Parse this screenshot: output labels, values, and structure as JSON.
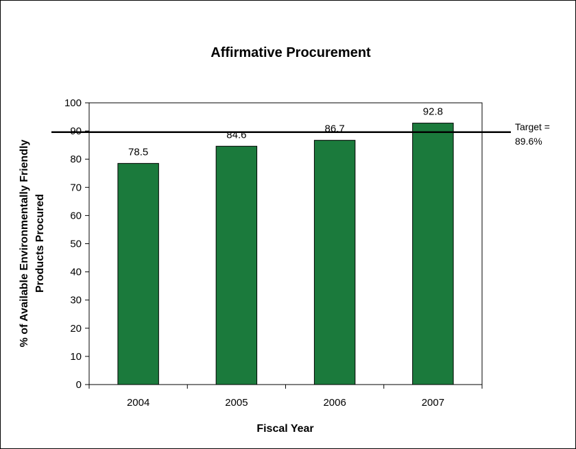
{
  "chart_data": {
    "type": "bar",
    "title": "Affirmative Procurement",
    "xlabel": "Fiscal Year",
    "ylabel": [
      "% of Available Environmentally Friendly",
      "Products Procured"
    ],
    "categories": [
      "2004",
      "2005",
      "2006",
      "2007"
    ],
    "values": [
      78.5,
      84.6,
      86.7,
      92.8
    ],
    "data_labels": [
      "78.5",
      "84.6",
      "86.7",
      "92.8"
    ],
    "ylim": [
      0,
      100
    ],
    "yticks": [
      0,
      10,
      20,
      30,
      40,
      50,
      60,
      70,
      80,
      90,
      100
    ],
    "grid": false,
    "bar_color": "#1b7a3c",
    "target": {
      "value": 89.6,
      "label_line1": "Target =",
      "label_line2": "89.6%"
    }
  }
}
